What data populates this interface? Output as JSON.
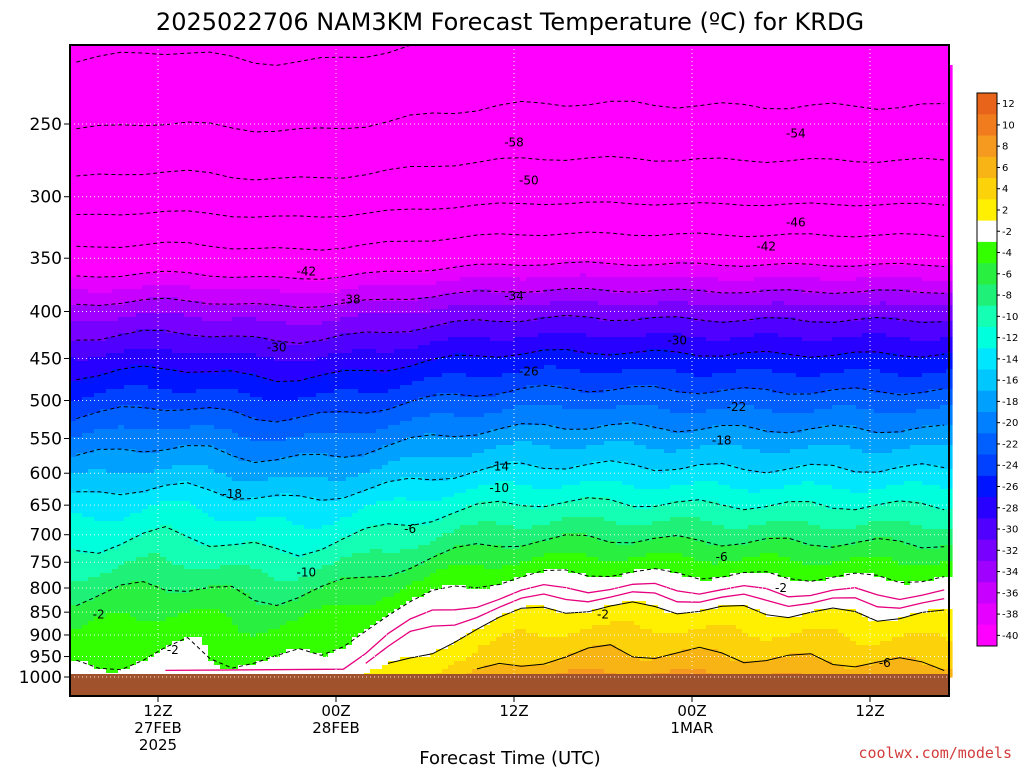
{
  "chart_data": {
    "type": "heatmap",
    "title": "2025022706 NAM3KM Forecast Temperature (ºC) for KRDG",
    "xlabel": "Forecast Time (UTC)",
    "ylabel": "",
    "credit": "coolwx.com/models",
    "y_axis": {
      "unit": "hPa",
      "scale": "log-pressure",
      "range": [
        1000,
        200
      ],
      "ticks": [
        "250",
        "300",
        "350",
        "400",
        "450",
        "500",
        "550",
        "600",
        "650",
        "700",
        "750",
        "800",
        "850",
        "900",
        "950",
        "1000"
      ]
    },
    "x_axis": {
      "ticks": [
        {
          "lines": [
            "12Z",
            "27FEB",
            "2025"
          ]
        },
        {
          "lines": [
            "00Z",
            "28FEB"
          ]
        },
        {
          "lines": [
            "12Z"
          ]
        },
        {
          "lines": [
            "00Z",
            "1MAR"
          ]
        },
        {
          "lines": [
            "12Z"
          ]
        }
      ]
    },
    "colorbar": {
      "levels": [
        "12",
        "10",
        "8",
        "6",
        "4",
        "2",
        "-2",
        "-4",
        "-6",
        "-8",
        "-10",
        "-12",
        "-14",
        "-16",
        "-18",
        "-20",
        "-22",
        "-24",
        "-26",
        "-28",
        "-30",
        "-32",
        "-34",
        "-36",
        "-38",
        "-40"
      ],
      "colors": [
        "#e8641a",
        "#f07c1e",
        "#f59a1e",
        "#f8b414",
        "#fcd20a",
        "#ffef00",
        "#ffffff",
        "#33ff00",
        "#29f040",
        "#1ef078",
        "#14ffb4",
        "#00ffdc",
        "#00e6ff",
        "#00c8ff",
        "#00a0ff",
        "#0080ff",
        "#0060ff",
        "#0040ff",
        "#0014ff",
        "#2800ff",
        "#5000ff",
        "#7800ff",
        "#a000ff",
        "#c800ff",
        "#e600ff",
        "#ff00ff"
      ]
    },
    "contour_labels": [
      {
        "text": "-58",
        "x": 24,
        "p": 262
      },
      {
        "text": "-54",
        "x": 43,
        "p": 256
      },
      {
        "text": "-50",
        "x": -14,
        "p": 292
      },
      {
        "text": "-50",
        "x": 25,
        "p": 288
      },
      {
        "text": "-46",
        "x": -22,
        "p": 328
      },
      {
        "text": "-46",
        "x": 43,
        "p": 320
      },
      {
        "text": "-42",
        "x": -41,
        "p": 350
      },
      {
        "text": "-42",
        "x": 10,
        "p": 362
      },
      {
        "text": "-42",
        "x": 41,
        "p": 340
      },
      {
        "text": "-38",
        "x": -33,
        "p": 372
      },
      {
        "text": "-38",
        "x": 13,
        "p": 388
      },
      {
        "text": "-34",
        "x": -41,
        "p": 398
      },
      {
        "text": "-34",
        "x": 24,
        "p": 385
      },
      {
        "text": "-30",
        "x": -40,
        "p": 430
      },
      {
        "text": "-30",
        "x": 8,
        "p": 438
      },
      {
        "text": "-30",
        "x": 35,
        "p": 430
      },
      {
        "text": "-26",
        "x": -52,
        "p": 465
      },
      {
        "text": "-26",
        "x": -7,
        "p": 500
      },
      {
        "text": "-26",
        "x": 25,
        "p": 465
      },
      {
        "text": "-22",
        "x": -40,
        "p": 488
      },
      {
        "text": "-22",
        "x": 39,
        "p": 508
      },
      {
        "text": "-18",
        "x": -33,
        "p": 545
      },
      {
        "text": "-18",
        "x": 5,
        "p": 632
      },
      {
        "text": "-18",
        "x": 38,
        "p": 553
      },
      {
        "text": "-14",
        "x": -42,
        "p": 590
      },
      {
        "text": "-14",
        "x": 23,
        "p": 590
      },
      {
        "text": "-10",
        "x": -29,
        "p": 632
      },
      {
        "text": "-10",
        "x": 23,
        "p": 623
      },
      {
        "text": "-10",
        "x": 10,
        "p": 770
      },
      {
        "text": "-6",
        "x": -26,
        "p": 690
      },
      {
        "text": "-6",
        "x": 17,
        "p": 690
      },
      {
        "text": "-6",
        "x": 38,
        "p": 740
      },
      {
        "text": "-2",
        "x": -46,
        "p": 740
      },
      {
        "text": "-2",
        "x": -4,
        "p": 855
      },
      {
        "text": "-2",
        "x": 30,
        "p": 855
      },
      {
        "text": "-2",
        "x": 42,
        "p": 800
      },
      {
        "text": "-2",
        "x": 1,
        "p": 935
      },
      {
        "text": "-6",
        "x": 49,
        "p": 965
      }
    ]
  }
}
